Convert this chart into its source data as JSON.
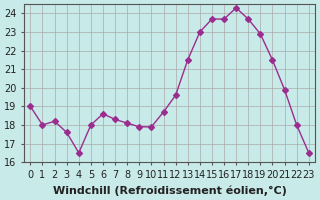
{
  "x": [
    0,
    1,
    2,
    3,
    4,
    5,
    6,
    7,
    8,
    9,
    10,
    11,
    12,
    13,
    14,
    15,
    16,
    17,
    18,
    19,
    20,
    21,
    22,
    23
  ],
  "y": [
    19.0,
    18.0,
    18.2,
    17.6,
    16.5,
    18.0,
    18.6,
    18.3,
    18.1,
    17.9,
    17.9,
    18.7,
    19.6,
    21.5,
    23.0,
    23.7,
    23.7,
    24.3,
    23.7,
    22.9,
    21.5,
    19.9,
    18.0,
    16.5
  ],
  "line_color": "#9B2D8E",
  "marker": "D",
  "marker_size": 3,
  "bg_color": "#C8EAE8",
  "grid_color": "#aaaaaa",
  "xlabel": "Windchill (Refroidissement éolien,°C)",
  "ylim": [
    16,
    24.5
  ],
  "xlim": [
    -0.5,
    23.5
  ],
  "yticks": [
    16,
    17,
    18,
    19,
    20,
    21,
    22,
    23,
    24
  ],
  "xticks": [
    0,
    1,
    2,
    3,
    4,
    5,
    6,
    7,
    8,
    9,
    10,
    11,
    12,
    13,
    14,
    15,
    16,
    17,
    18,
    19,
    20,
    21,
    22,
    23
  ],
  "tick_fontsize": 7,
  "xlabel_fontsize": 8
}
